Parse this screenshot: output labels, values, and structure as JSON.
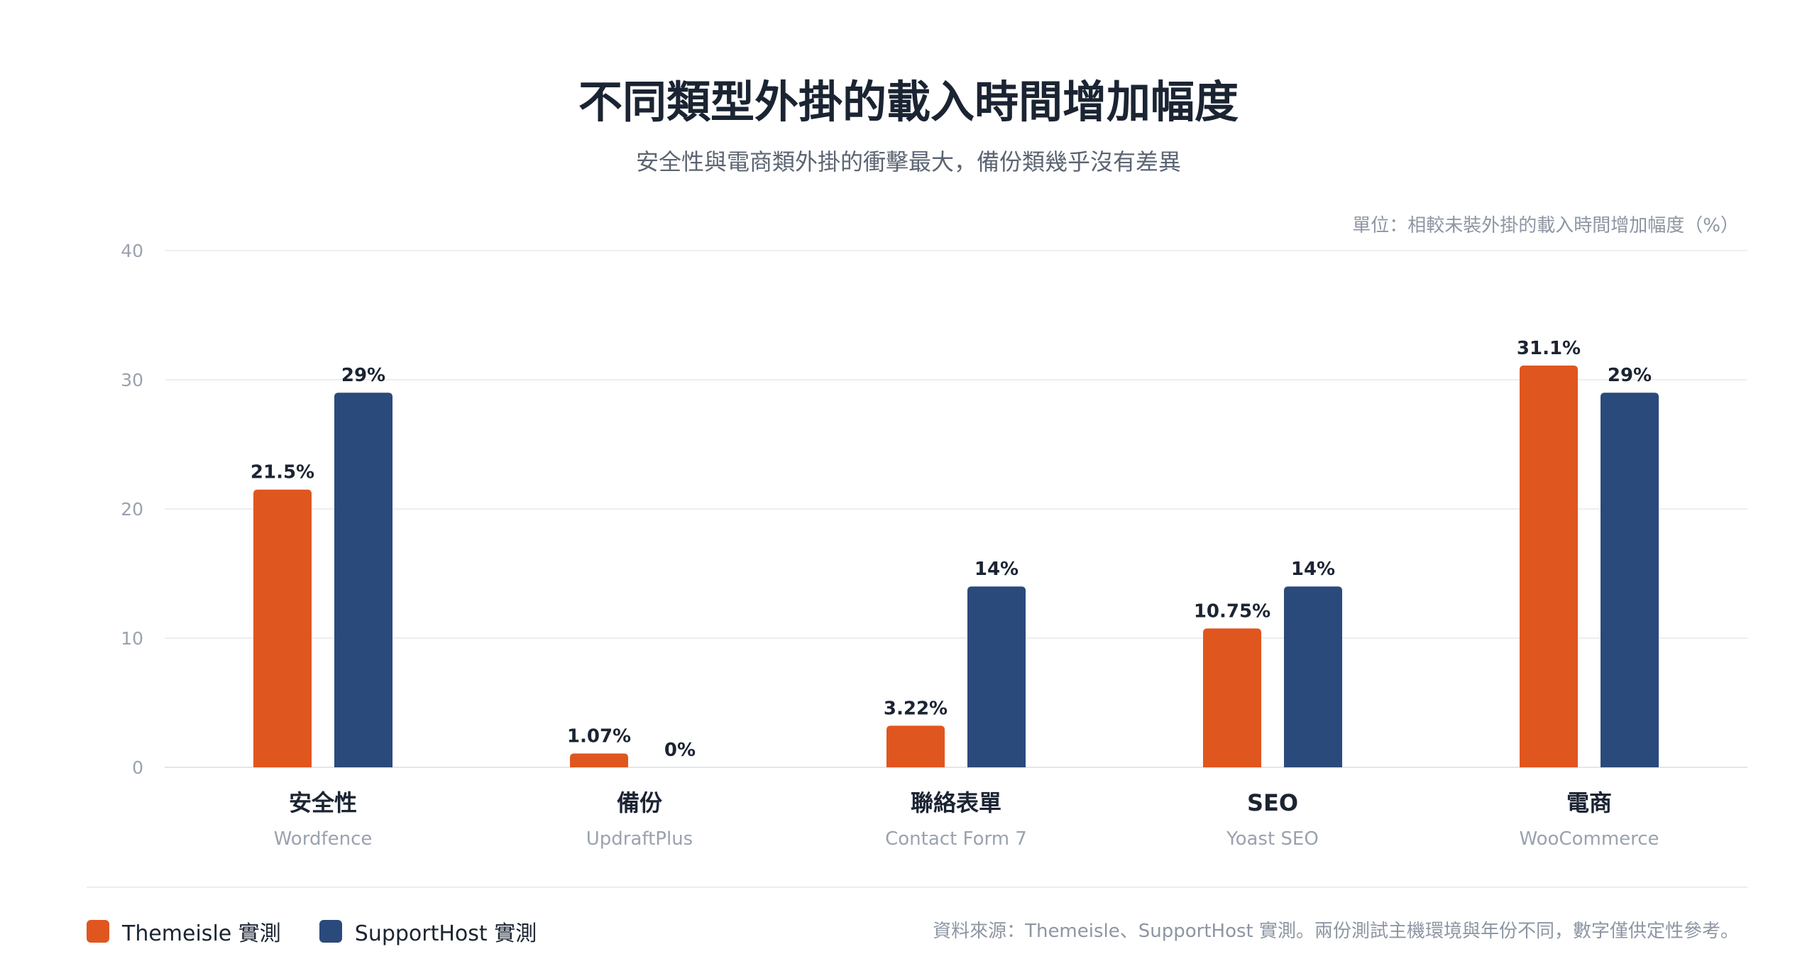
{
  "title": "不同類型外掛的載入時間增加幅度",
  "subtitle": "安全性與電商類外掛的衝擊最大，備份類幾乎沒有差異",
  "unit_note": "單位：相較未裝外掛的載入時間增加幅度（%）",
  "source_note": "資料來源：Themeisle、SupportHost 實測。兩份測試主機環境與年份不同，數字僅供定性參考。",
  "colors": {
    "themeisle": "#e0561f",
    "supporthost": "#2a4a7b"
  },
  "legend": [
    {
      "label": "Themeisle 實測",
      "color": "#e0561f"
    },
    {
      "label": "SupportHost 實測",
      "color": "#2a4a7b"
    }
  ],
  "chart_data": {
    "type": "bar",
    "ylim": [
      0,
      40
    ],
    "yticks": [
      0,
      10,
      20,
      30,
      40
    ],
    "grid": true,
    "legend_position": "bottom-left",
    "categories": [
      "安全性",
      "備份",
      "聯絡表單",
      "SEO",
      "電商"
    ],
    "subcategories": [
      "Wordfence",
      "UpdraftPlus",
      "Contact Form 7",
      "Yoast SEO",
      "WooCommerce"
    ],
    "series": [
      {
        "name": "Themeisle 實測",
        "values": [
          21.5,
          1.07,
          3.22,
          10.75,
          31.1
        ],
        "labels": [
          "21.5%",
          "1.07%",
          "3.22%",
          "10.75%",
          "31.1%"
        ]
      },
      {
        "name": "SupportHost 實測",
        "values": [
          29,
          0,
          14,
          14,
          29
        ],
        "labels": [
          "29%",
          "0%",
          "14%",
          "14%",
          "29%"
        ]
      }
    ]
  }
}
